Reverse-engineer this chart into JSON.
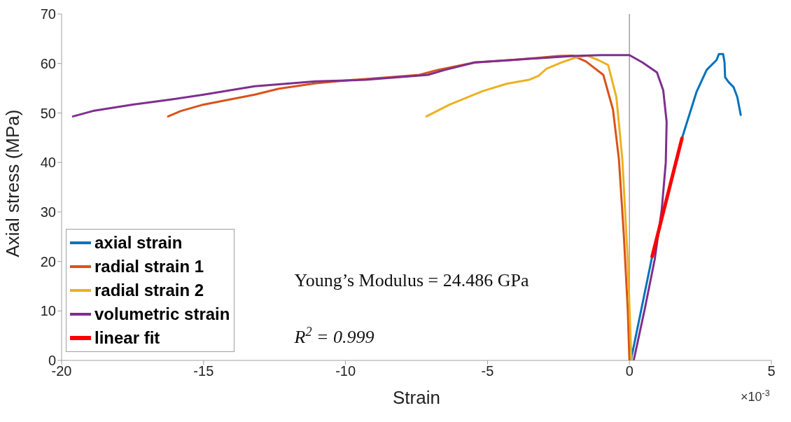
{
  "chart_data": {
    "type": "line",
    "xlabel": "Strain",
    "ylabel": "Axial stress (MPa)",
    "xlim": [
      -20,
      5
    ],
    "xticks": [
      -20,
      -15,
      -10,
      -5,
      0,
      5
    ],
    "ylim": [
      0,
      70
    ],
    "yticks": [
      0,
      10,
      20,
      30,
      40,
      50,
      60,
      70
    ],
    "grid": false,
    "legend": "bottom left",
    "marker": "none",
    "line_style": "solid",
    "ref_lines": [
      {
        "axis": "x",
        "value": 0,
        "color": "#a0a0a0"
      }
    ],
    "annotations": [
      "Young’s Modulus = 24.486 GPa",
      "R$^{2}$ = 0.999",
      "×10$^{-3}$"
    ],
    "series": [
      {
        "name": "axial strain",
        "color": "#0072bd",
        "x": [
          0.05,
          0.8,
          1.85,
          2.36,
          2.72,
          3.07,
          3.15,
          3.3,
          3.35,
          3.37,
          3.5,
          3.67,
          3.8,
          3.92
        ],
        "values": [
          0,
          21,
          44.9,
          54.2,
          58.7,
          60.7,
          61.9,
          61.9,
          60.2,
          57.2,
          56.2,
          55.2,
          53.2,
          49.6
        ]
      },
      {
        "name": "radial strain 1",
        "color": "#d95319",
        "x": [
          -16.25,
          -15.8,
          -15,
          -13.2,
          -12.35,
          -11.05,
          -9.7,
          -8.5,
          -7.4,
          -6.75,
          -5.45,
          -4.15,
          -2.5,
          -2,
          -1.53,
          -0.92,
          -0.58,
          -0.37,
          -0.2,
          -0.06,
          0
        ],
        "values": [
          49.3,
          50.4,
          51.7,
          53.7,
          54.9,
          56,
          56.7,
          57.2,
          57.7,
          58.7,
          60.2,
          60.7,
          61.5,
          61.6,
          60.4,
          57.7,
          50.7,
          40.6,
          25.5,
          10.4,
          0
        ]
      },
      {
        "name": "radial strain 2",
        "color": "#edb120",
        "x": [
          -7.15,
          -6.33,
          -5.18,
          -4.33,
          -3.54,
          -3.2,
          -2.93,
          -2.4,
          -1.9,
          -1.5,
          -1.1,
          -0.75,
          -0.46,
          -0.25,
          -0.06,
          0.07
        ],
        "values": [
          49.3,
          51.7,
          54.4,
          55.9,
          56.7,
          57.5,
          58.9,
          60.2,
          61.2,
          61.6,
          60.7,
          59.7,
          53.2,
          40.6,
          20.4,
          0
        ]
      },
      {
        "name": "volumetric strain",
        "color": "#7e2f8e",
        "x": [
          -19.6,
          -18.9,
          -17.5,
          -16.3,
          -15,
          -13.2,
          -11.05,
          -9.3,
          -7.1,
          -6.5,
          -5.45,
          -4.15,
          -2,
          -1,
          0,
          0.46,
          0.97,
          1.19,
          1.31,
          1.28,
          1.14,
          0.89,
          0.54,
          0.15
        ],
        "values": [
          49.3,
          50.4,
          51.7,
          52.6,
          53.7,
          55.4,
          56.4,
          56.7,
          57.7,
          58.7,
          60.2,
          60.7,
          61.5,
          61.7,
          61.7,
          60.2,
          58.2,
          54.6,
          48.2,
          40,
          30.6,
          20.4,
          10.4,
          0
        ]
      },
      {
        "name": "linear fit",
        "color": "#ff0000",
        "x": [
          0.8,
          1.85
        ],
        "values": [
          21,
          44.9
        ]
      }
    ]
  }
}
